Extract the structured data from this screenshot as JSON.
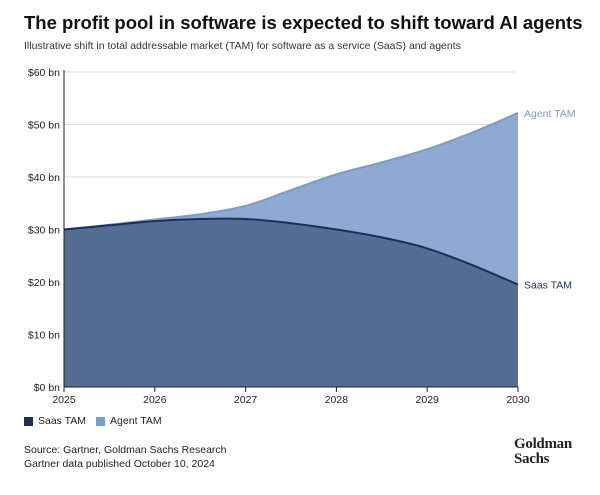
{
  "header": {
    "title": "The profit pool in software is expected to shift toward AI agents",
    "subtitle": "Illustrative shift in total addressable market (TAM) for software as a service (SaaS) and agents"
  },
  "legend": {
    "items": [
      {
        "label": "Saas TAM",
        "color": "#1c2f5c"
      },
      {
        "label": "Agent TAM",
        "color": "#7b9bcb"
      }
    ]
  },
  "footer": {
    "source": "Source: Gartner, Goldman Sachs Research",
    "note": "Gartner data published October 10, 2024",
    "logo_line1": "Goldman",
    "logo_line2": "Sachs"
  },
  "colors": {
    "saas_fill": "#556d93",
    "saas_line": "#1c2f5c",
    "agent_fill": "#8fa9d0",
    "agent_line": "#7b9bcb",
    "grid": "#dddddd",
    "axis": "#222222"
  },
  "chart_data": {
    "type": "area",
    "title": "The profit pool in software is expected to shift toward AI agents",
    "subtitle": "Illustrative shift in total addressable market (TAM) for software as a service (SaaS) and agents",
    "x": [
      2025,
      2025.5,
      2026,
      2026.5,
      2027,
      2027.5,
      2028,
      2028.5,
      2029,
      2029.5,
      2030
    ],
    "x_ticks": [
      "2025",
      "2026",
      "2027",
      "2028",
      "2029",
      "2030"
    ],
    "y_ticks": [
      "$0 bn",
      "$10 bn",
      "$20 bn",
      "$30 bn",
      "$40 bn",
      "$50 bn",
      "$60 bn"
    ],
    "ylim": [
      0,
      60
    ],
    "xlim": [
      2025,
      2030
    ],
    "series": [
      {
        "name": "Saas TAM",
        "values": [
          30,
          30.8,
          31.6,
          32,
          32,
          31.2,
          30,
          28.5,
          26.4,
          23.2,
          19.5
        ]
      },
      {
        "name": "Agent TAM",
        "values": [
          30,
          30.9,
          31.9,
          32.9,
          34.5,
          37.5,
          40.5,
          42.8,
          45.3,
          48.5,
          52.2
        ]
      }
    ],
    "end_labels": [
      "Saas TAM",
      "Agent TAM"
    ],
    "grid": true,
    "legend_position": "bottom-left"
  }
}
